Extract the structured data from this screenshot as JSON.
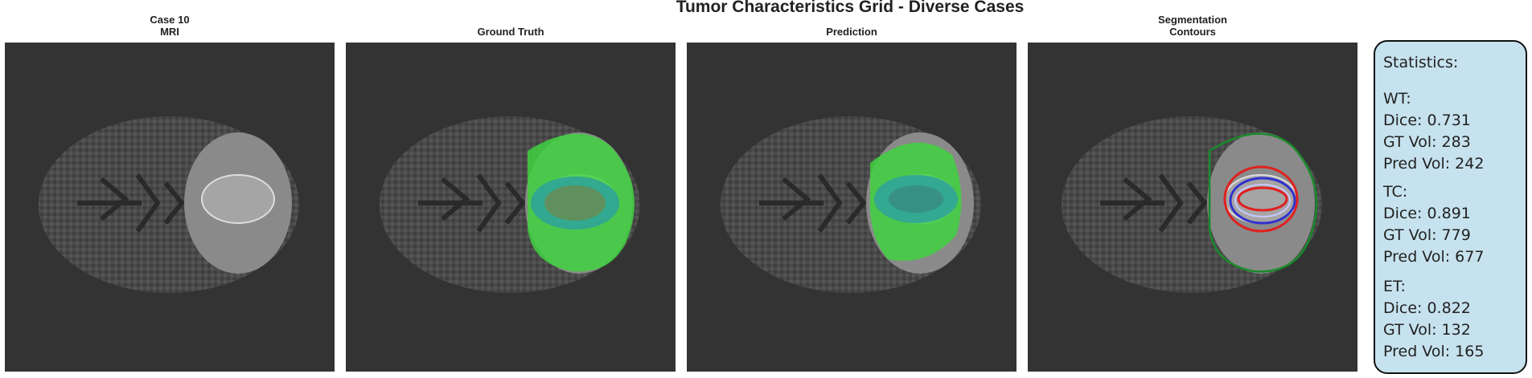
{
  "title": "Tumor Characteristics Grid - Diverse Cases",
  "panels": [
    {
      "title": [
        "Case 10",
        "MRI"
      ]
    },
    {
      "title": [
        "Ground Truth"
      ]
    },
    {
      "title": [
        "Prediction"
      ]
    },
    {
      "title": [
        "Segmentation",
        "Contours"
      ]
    }
  ],
  "statistics": {
    "heading": "Statistics:",
    "groups": [
      {
        "name": "WT:",
        "lines": [
          "Dice: 0.731",
          "GT Vol: 283",
          "Pred Vol: 242"
        ]
      },
      {
        "name": "TC:",
        "lines": [
          "Dice: 0.891",
          "GT Vol: 779",
          "Pred Vol: 677"
        ]
      },
      {
        "name": "ET:",
        "lines": [
          "Dice: 0.822",
          "GT Vol: 132",
          "Pred Vol: 165"
        ]
      }
    ]
  }
}
